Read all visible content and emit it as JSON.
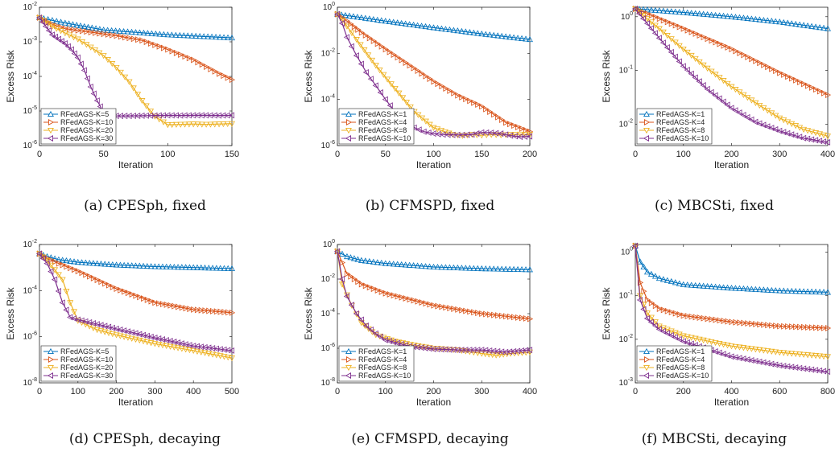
{
  "chart_data": [
    {
      "type": "line",
      "caption": "(a) CPESph, fixed",
      "xlabel": "Iteration",
      "ylabel": "Excess Risk",
      "xlim": [
        0,
        150
      ],
      "ylim_exp": [
        -6,
        -2
      ],
      "yscale": "log",
      "xticks": [
        0,
        50,
        100,
        150
      ],
      "xtick_labels": [
        "0",
        "50",
        "100",
        "150"
      ],
      "yticks_exp": [
        -6,
        -5,
        -4,
        -3,
        -2
      ],
      "legend_position": "bottom-left",
      "series": [
        {
          "name": "RFedAGS-K=5",
          "color": "#0072bd",
          "marker": "up",
          "x": [
            0,
            20,
            50,
            100,
            150
          ],
          "y": [
            0.005,
            0.0035,
            0.0022,
            0.0016,
            0.0013
          ]
        },
        {
          "name": "RFedAGS-K=10",
          "color": "#d95319",
          "marker": "right",
          "x": [
            0,
            10,
            20,
            40,
            60,
            80,
            100,
            120,
            140,
            150
          ],
          "y": [
            0.005,
            0.0032,
            0.0024,
            0.0019,
            0.0015,
            0.0011,
            0.0006,
            0.0003,
            0.00012,
            8e-05
          ]
        },
        {
          "name": "RFedAGS-K=20",
          "color": "#edb120",
          "marker": "down",
          "x": [
            0,
            10,
            20,
            30,
            40,
            50,
            60,
            70,
            80,
            90,
            100,
            110,
            120,
            130,
            140,
            150
          ],
          "y": [
            0.005,
            0.0028,
            0.0018,
            0.0012,
            0.0007,
            0.0004,
            0.00018,
            7e-05,
            2e-05,
            7e-06,
            4e-06,
            4.1e-06,
            4.2e-06,
            4.1e-06,
            4.2e-06,
            4.3e-06
          ]
        },
        {
          "name": "RFedAGS-K=30",
          "color": "#7e2f8e",
          "marker": "left",
          "x": [
            0,
            5,
            10,
            15,
            20,
            25,
            30,
            35,
            40,
            45,
            50,
            55,
            60,
            70,
            80,
            90,
            100,
            110,
            120,
            130,
            140,
            150
          ],
          "y": [
            0.005,
            0.0028,
            0.0016,
            0.0012,
            0.0009,
            0.0006,
            0.00035,
            0.00015,
            5e-05,
            2e-05,
            9e-06,
            7.5e-06,
            7.2e-06,
            7.2e-06,
            7.3e-06,
            7.4e-06,
            7.5e-06,
            7.4e-06,
            7.5e-06,
            7.5e-06,
            7.4e-06,
            7.5e-06
          ]
        }
      ]
    },
    {
      "type": "line",
      "caption": "(b) CFMSPD, fixed",
      "xlabel": "Iteration",
      "ylabel": "Excess Risk",
      "xlim": [
        0,
        200
      ],
      "ylim_exp": [
        -6,
        0
      ],
      "yscale": "log",
      "xticks": [
        0,
        50,
        100,
        150,
        200
      ],
      "xtick_labels": [
        "0",
        "50",
        "100",
        "150",
        "200"
      ],
      "yticks_exp": [
        -6,
        -4,
        -2,
        0
      ],
      "legend_position": "bottom-left",
      "series": [
        {
          "name": "RFedAGS-K=1",
          "color": "#0072bd",
          "marker": "up",
          "x": [
            0,
            50,
            100,
            150,
            200
          ],
          "y": [
            0.5,
            0.25,
            0.13,
            0.07,
            0.04
          ]
        },
        {
          "name": "RFedAGS-K=4",
          "color": "#d95319",
          "marker": "right",
          "x": [
            0,
            10,
            25,
            50,
            75,
            100,
            125,
            150,
            175,
            200
          ],
          "y": [
            0.5,
            0.25,
            0.08,
            0.015,
            0.003,
            0.0006,
            0.00015,
            5e-05,
            1e-05,
            4e-06
          ]
        },
        {
          "name": "RFedAGS-K=8",
          "color": "#edb120",
          "marker": "down",
          "x": [
            0,
            10,
            20,
            40,
            60,
            80,
            100,
            120,
            130,
            140,
            150,
            160,
            170,
            180,
            190,
            200
          ],
          "y": [
            0.5,
            0.15,
            0.04,
            0.003,
            0.0003,
            3e-05,
            6e-06,
            3e-06,
            2.7e-06,
            3e-06,
            2.8e-06,
            3e-06,
            2.9e-06,
            3e-06,
            3.1e-06,
            3e-06
          ]
        },
        {
          "name": "RFedAGS-K=10",
          "color": "#7e2f8e",
          "marker": "left",
          "x": [
            0,
            5,
            10,
            20,
            30,
            40,
            50,
            60,
            70,
            80,
            90,
            100,
            110,
            120,
            130,
            140,
            150,
            160,
            170,
            180,
            190,
            200
          ],
          "y": [
            0.5,
            0.2,
            0.05,
            0.008,
            0.0015,
            0.0004,
            0.0001,
            3e-05,
            1.2e-05,
            6e-06,
            4e-06,
            3.3e-06,
            3e-06,
            2.9e-06,
            2.9e-06,
            3e-06,
            3.7e-06,
            3.6e-06,
            3.3e-06,
            2.7e-06,
            2.4e-06,
            2.5e-06
          ]
        }
      ]
    },
    {
      "type": "line",
      "caption": "(c) MBCSti, fixed",
      "xlabel": "Iteration",
      "ylabel": "Excess Risk",
      "xlim": [
        0,
        400
      ],
      "ylim": [
        0.004,
        1.5
      ],
      "yscale": "log",
      "xticks": [
        0,
        100,
        200,
        300,
        400
      ],
      "xtick_labels": [
        "0",
        "100",
        "200",
        "300",
        "400"
      ],
      "yticks": [
        0.01,
        0.1,
        1
      ],
      "ytick_exp": [
        -2,
        -1,
        0
      ],
      "legend_position": "bottom-left",
      "series": [
        {
          "name": "RFedAGS-K=1",
          "color": "#0072bd",
          "marker": "up",
          "x": [
            0,
            100,
            200,
            300,
            400
          ],
          "y": [
            1.4,
            1.2,
            1.0,
            0.8,
            0.6
          ]
        },
        {
          "name": "RFedAGS-K=4",
          "color": "#d95319",
          "marker": "right",
          "x": [
            0,
            100,
            200,
            300,
            400
          ],
          "y": [
            1.4,
            0.6,
            0.25,
            0.09,
            0.035
          ]
        },
        {
          "name": "RFedAGS-K=8",
          "color": "#edb120",
          "marker": "down",
          "x": [
            0,
            50,
            100,
            150,
            200,
            250,
            300,
            350,
            400
          ],
          "y": [
            1.4,
            0.6,
            0.25,
            0.11,
            0.05,
            0.025,
            0.013,
            0.008,
            0.006
          ]
        },
        {
          "name": "RFedAGS-K=10",
          "color": "#7e2f8e",
          "marker": "left",
          "x": [
            0,
            50,
            100,
            150,
            200,
            250,
            300,
            350,
            400
          ],
          "y": [
            1.4,
            0.4,
            0.12,
            0.045,
            0.02,
            0.011,
            0.0075,
            0.0055,
            0.0046
          ]
        }
      ]
    },
    {
      "type": "line",
      "caption": "(d) CPESph, decaying",
      "xlabel": "Iteration",
      "ylabel": "Excess Risk",
      "xlim": [
        0,
        500
      ],
      "ylim_exp": [
        -8,
        -2
      ],
      "yscale": "log",
      "xticks": [
        0,
        100,
        200,
        300,
        400,
        500
      ],
      "xtick_labels": [
        "0",
        "100",
        "200",
        "300",
        "400",
        "500"
      ],
      "yticks_exp": [
        -8,
        -6,
        -4,
        -2
      ],
      "legend_position": "bottom-left",
      "series": [
        {
          "name": "RFedAGS-K=5",
          "color": "#0072bd",
          "marker": "up",
          "x": [
            0,
            20,
            50,
            100,
            200,
            300,
            400,
            500
          ],
          "y": [
            0.004,
            0.003,
            0.0022,
            0.0017,
            0.0013,
            0.0011,
            0.001,
            0.0009
          ]
        },
        {
          "name": "RFedAGS-K=10",
          "color": "#d95319",
          "marker": "right",
          "x": [
            0,
            20,
            50,
            100,
            200,
            300,
            400,
            500
          ],
          "y": [
            0.004,
            0.0025,
            0.0015,
            0.0007,
            0.00012,
            3e-05,
            1.5e-05,
            1.1e-05
          ]
        },
        {
          "name": "RFedAGS-K=20",
          "color": "#edb120",
          "marker": "down",
          "x": [
            0,
            20,
            40,
            60,
            80,
            100,
            150,
            200,
            300,
            400,
            500
          ],
          "y": [
            0.004,
            0.002,
            0.0008,
            0.0003,
            3e-05,
            5e-06,
            2e-06,
            1.2e-06,
            5e-07,
            2.5e-07,
            1.2e-07
          ]
        },
        {
          "name": "RFedAGS-K=30",
          "color": "#7e2f8e",
          "marker": "left",
          "x": [
            0,
            20,
            40,
            60,
            80,
            100,
            150,
            200,
            300,
            400,
            500
          ],
          "y": [
            0.004,
            0.0015,
            0.0003,
            3e-05,
            7e-06,
            5.5e-06,
            3.5e-06,
            2.2e-06,
            9e-07,
            4e-07,
            2.5e-07
          ]
        }
      ]
    },
    {
      "type": "line",
      "caption": "(e) CFMSPD, decaying",
      "xlabel": "Iteration",
      "ylabel": "Excess Risk",
      "xlim": [
        0,
        400
      ],
      "ylim_exp": [
        -8,
        0
      ],
      "yscale": "log",
      "xticks": [
        0,
        100,
        200,
        300,
        400
      ],
      "xtick_labels": [
        "0",
        "100",
        "200",
        "300",
        "400"
      ],
      "yticks_exp": [
        -8,
        -6,
        -4,
        -2,
        0
      ],
      "legend_position": "bottom-left",
      "series": [
        {
          "name": "RFedAGS-K=1",
          "color": "#0072bd",
          "marker": "up",
          "x": [
            0,
            20,
            50,
            100,
            200,
            300,
            400
          ],
          "y": [
            0.4,
            0.2,
            0.12,
            0.08,
            0.05,
            0.04,
            0.035
          ]
        },
        {
          "name": "RFedAGS-K=4",
          "color": "#d95319",
          "marker": "right",
          "x": [
            0,
            20,
            50,
            100,
            200,
            300,
            400
          ],
          "y": [
            0.4,
            0.02,
            0.005,
            0.0015,
            0.0003,
            0.0001,
            5e-05
          ]
        },
        {
          "name": "RFedAGS-K=8",
          "color": "#edb120",
          "marker": "down",
          "x": [
            0,
            10,
            30,
            50,
            80,
            120,
            160,
            200,
            250,
            300,
            330,
            360,
            400
          ],
          "y": [
            0.4,
            0.005,
            0.0003,
            3e-05,
            6e-06,
            2.5e-06,
            1.5e-06,
            1e-06,
            8e-07,
            5e-07,
            4e-07,
            5e-07,
            6e-07
          ]
        },
        {
          "name": "RFedAGS-K=10",
          "color": "#7e2f8e",
          "marker": "left",
          "x": [
            0,
            10,
            20,
            40,
            60,
            80,
            100,
            150,
            200,
            250,
            300,
            350,
            400
          ],
          "y": [
            0.4,
            0.01,
            0.001,
            0.0001,
            2e-05,
            7e-06,
            3e-06,
            1.3e-06,
            9e-07,
            8e-07,
            8e-07,
            6e-07,
            8e-07
          ]
        }
      ]
    },
    {
      "type": "line",
      "caption": "(f) MBCSti, decaying",
      "xlabel": "Iteration",
      "ylabel": "Excess Risk",
      "xlim": [
        0,
        800
      ],
      "ylim": [
        0.001,
        1.5
      ],
      "yscale": "log",
      "xticks": [
        0,
        200,
        400,
        600,
        800
      ],
      "xtick_labels": [
        "0",
        "200",
        "400",
        "600",
        "800"
      ],
      "yticks": [
        0.001,
        0.01,
        0.1,
        1
      ],
      "ytick_exp": [
        -3,
        -2,
        -1,
        0
      ],
      "legend_position": "bottom-left",
      "series": [
        {
          "name": "RFedAGS-K=1",
          "color": "#0072bd",
          "marker": "up",
          "x": [
            0,
            20,
            50,
            100,
            200,
            400,
            600,
            800
          ],
          "y": [
            1.4,
            0.6,
            0.35,
            0.25,
            0.18,
            0.15,
            0.13,
            0.12
          ]
        },
        {
          "name": "RFedAGS-K=4",
          "color": "#d95319",
          "marker": "right",
          "x": [
            0,
            20,
            50,
            100,
            200,
            400,
            600,
            800
          ],
          "y": [
            1.4,
            0.2,
            0.08,
            0.05,
            0.035,
            0.025,
            0.02,
            0.018
          ]
        },
        {
          "name": "RFedAGS-K=8",
          "color": "#edb120",
          "marker": "down",
          "x": [
            0,
            20,
            50,
            100,
            200,
            400,
            600,
            800
          ],
          "y": [
            1.4,
            0.1,
            0.04,
            0.02,
            0.012,
            0.007,
            0.005,
            0.004
          ]
        },
        {
          "name": "RFedAGS-K=10",
          "color": "#7e2f8e",
          "marker": "left",
          "x": [
            0,
            20,
            50,
            100,
            200,
            400,
            600,
            800
          ],
          "y": [
            1.4,
            0.08,
            0.03,
            0.017,
            0.009,
            0.004,
            0.0025,
            0.0018
          ]
        }
      ]
    }
  ]
}
